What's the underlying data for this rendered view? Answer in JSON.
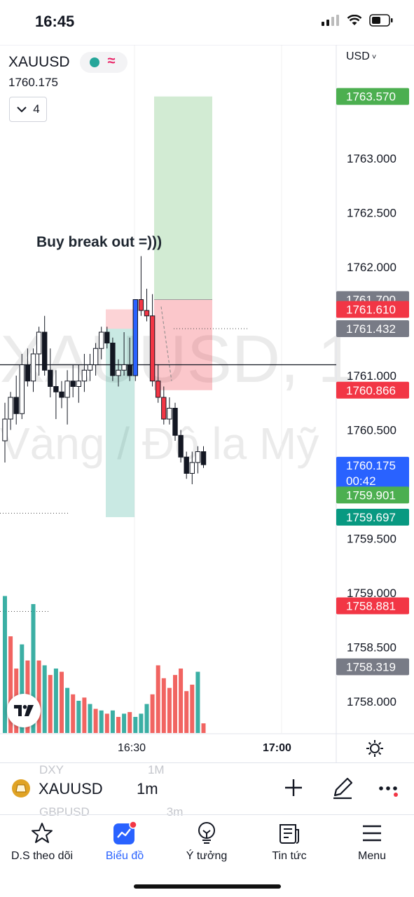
{
  "status_bar": {
    "time": "16:45"
  },
  "header": {
    "symbol": "XAUUSD",
    "last_price": "1760.175",
    "indicator_count": "4",
    "currency": "USD",
    "watermark_line1": "XAUUSD, 1",
    "watermark_line2": "Vàng / Đô la Mỹ"
  },
  "annotation": "Buy break out =)))",
  "price_axis": {
    "ticks": [
      "1763.000",
      "1762.500",
      "1762.000",
      "1761.000",
      "1760.500",
      "1759.500",
      "1759.000",
      "1758.500",
      "1758.000"
    ],
    "badges": [
      {
        "label": "1763.570",
        "color": "#4caf50"
      },
      {
        "label": "1761.700",
        "color": "#787b86"
      },
      {
        "label": "1761.610",
        "color": "#f23645"
      },
      {
        "label": "1761.432",
        "color": "#787b86"
      },
      {
        "label": "1760.866",
        "color": "#f23645"
      },
      {
        "label": "1760.175",
        "sub": "00:42",
        "color": "#2962ff"
      },
      {
        "label": "1759.901",
        "color": "#4caf50"
      },
      {
        "label": "1759.697",
        "color": "#089981"
      },
      {
        "label": "1758.881",
        "color": "#f23645"
      },
      {
        "label": "1758.319",
        "color": "#787b86"
      }
    ]
  },
  "time_axis": {
    "labels": [
      "16:30",
      "17:00"
    ]
  },
  "chart_data": {
    "type": "candlestick",
    "symbol": "XAUUSD",
    "interval": "1m",
    "candles": [
      {
        "o": 1760.4,
        "h": 1760.75,
        "l": 1760.2,
        "c": 1760.6
      },
      {
        "o": 1760.6,
        "h": 1760.85,
        "l": 1760.5,
        "c": 1760.8
      },
      {
        "o": 1760.8,
        "h": 1761.0,
        "l": 1760.55,
        "c": 1760.65
      },
      {
        "o": 1760.65,
        "h": 1761.2,
        "l": 1760.6,
        "c": 1761.1
      },
      {
        "o": 1761.1,
        "h": 1761.25,
        "l": 1760.9,
        "c": 1760.95
      },
      {
        "o": 1760.95,
        "h": 1761.25,
        "l": 1760.85,
        "c": 1761.2
      },
      {
        "o": 1761.2,
        "h": 1761.45,
        "l": 1761.0,
        "c": 1761.4
      },
      {
        "o": 1761.4,
        "h": 1761.55,
        "l": 1761.0,
        "c": 1761.05
      },
      {
        "o": 1761.05,
        "h": 1761.25,
        "l": 1760.8,
        "c": 1760.9
      },
      {
        "o": 1760.9,
        "h": 1761.05,
        "l": 1760.6,
        "c": 1760.85
      },
      {
        "o": 1760.85,
        "h": 1760.95,
        "l": 1760.7,
        "c": 1760.8
      },
      {
        "o": 1760.8,
        "h": 1761.05,
        "l": 1760.55,
        "c": 1760.95
      },
      {
        "o": 1760.95,
        "h": 1761.1,
        "l": 1760.8,
        "c": 1760.9
      },
      {
        "o": 1760.9,
        "h": 1761.1,
        "l": 1760.75,
        "c": 1760.95
      },
      {
        "o": 1760.95,
        "h": 1761.2,
        "l": 1760.85,
        "c": 1761.05
      },
      {
        "o": 1761.05,
        "h": 1761.2,
        "l": 1760.95,
        "c": 1761.1
      },
      {
        "o": 1761.1,
        "h": 1761.3,
        "l": 1761.0,
        "c": 1761.25
      },
      {
        "o": 1761.25,
        "h": 1761.45,
        "l": 1761.15,
        "c": 1761.4
      },
      {
        "o": 1761.4,
        "h": 1761.45,
        "l": 1761.25,
        "c": 1761.3
      },
      {
        "o": 1761.3,
        "h": 1761.35,
        "l": 1760.95,
        "c": 1761.0
      },
      {
        "o": 1761.0,
        "h": 1761.15,
        "l": 1760.9,
        "c": 1761.05
      },
      {
        "o": 1761.05,
        "h": 1761.4,
        "l": 1761.0,
        "c": 1761.1
      },
      {
        "o": 1761.1,
        "h": 1761.35,
        "l": 1760.95,
        "c": 1761.0
      },
      {
        "o": 1761.0,
        "h": 1761.7,
        "l": 1760.95,
        "c": 1761.7
      },
      {
        "o": 1761.7,
        "h": 1762.1,
        "l": 1761.55,
        "c": 1761.6
      },
      {
        "o": 1761.6,
        "h": 1761.8,
        "l": 1761.5,
        "c": 1761.55
      },
      {
        "o": 1761.55,
        "h": 1761.75,
        "l": 1760.9,
        "c": 1760.95
      },
      {
        "o": 1760.95,
        "h": 1761.1,
        "l": 1760.75,
        "c": 1760.8
      },
      {
        "o": 1760.8,
        "h": 1760.9,
        "l": 1760.55,
        "c": 1760.6
      },
      {
        "o": 1760.6,
        "h": 1760.8,
        "l": 1760.55,
        "c": 1760.7
      },
      {
        "o": 1760.7,
        "h": 1760.75,
        "l": 1760.4,
        "c": 1760.45
      },
      {
        "o": 1760.45,
        "h": 1760.5,
        "l": 1760.2,
        "c": 1760.25
      },
      {
        "o": 1760.25,
        "h": 1760.3,
        "l": 1760.05,
        "c": 1760.1
      },
      {
        "o": 1760.1,
        "h": 1760.3,
        "l": 1760.0,
        "c": 1760.2
      },
      {
        "o": 1760.2,
        "h": 1760.35,
        "l": 1760.1,
        "c": 1760.3
      },
      {
        "o": 1760.3,
        "h": 1760.35,
        "l": 1760.15,
        "c": 1760.18
      }
    ],
    "volume": [
      85,
      60,
      40,
      55,
      45,
      80,
      45,
      42,
      36,
      40,
      38,
      28,
      24,
      20,
      22,
      18,
      15,
      14,
      12,
      14,
      10,
      12,
      13,
      10,
      12,
      18,
      24,
      42,
      34,
      28,
      36,
      40,
      26,
      30,
      38,
      6
    ],
    "volume_up": [
      true,
      false,
      false,
      true,
      false,
      true,
      false,
      true,
      false,
      true,
      false,
      true,
      false,
      true,
      false,
      true,
      false,
      true,
      false,
      true,
      false,
      true,
      false,
      true,
      true,
      true,
      false,
      false,
      false,
      false,
      false,
      false,
      false,
      false,
      true,
      false
    ],
    "ylim": [
      1757.8,
      1764.0
    ],
    "long_position": {
      "entry": 1761.7,
      "target": 1763.57,
      "stop": 1760.866
    },
    "prev_position": {
      "entry": 1761.432,
      "target": 1761.61,
      "stop": 1759.697
    },
    "crosshair_price": 1761.1
  },
  "toolbar": {
    "symbol": "XAUUSD",
    "interval": "1m",
    "ghost_top": [
      "DXY",
      "1M"
    ],
    "ghost_bottom": [
      "GBPUSD",
      "3m"
    ]
  },
  "tabbar": {
    "items": [
      {
        "label": "D.S theo dõi",
        "icon": "star-icon"
      },
      {
        "label": "Biểu đồ",
        "icon": "chart-icon"
      },
      {
        "label": "Ý tưởng",
        "icon": "idea-icon"
      },
      {
        "label": "Tin tức",
        "icon": "news-icon"
      },
      {
        "label": "Menu",
        "icon": "menu-icon"
      }
    ],
    "active": "Biểu đồ"
  }
}
